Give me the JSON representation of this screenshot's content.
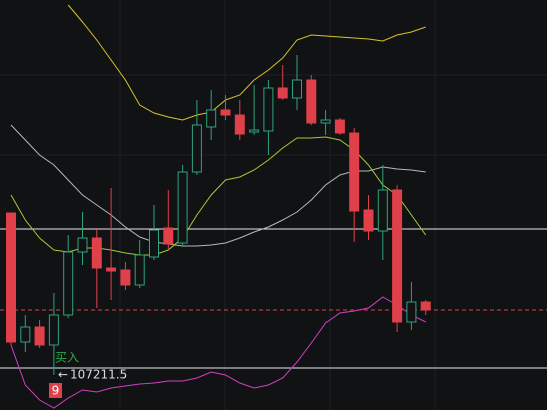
{
  "chart_data": {
    "type": "candlestick",
    "ylim": [
      106860,
      110960
    ],
    "up_color": "#2ea37c",
    "down_color": "#e0404a",
    "candles": {
      "open": [
        108830,
        107540,
        107690,
        107510,
        107810,
        108440,
        108580,
        108280,
        108260,
        108110,
        108390,
        108680,
        108530,
        109240,
        109690,
        109860,
        109810,
        109640,
        109650,
        110080,
        109980,
        110160,
        109730,
        109760,
        109630,
        108860,
        108650,
        109060,
        107740,
        107940
      ],
      "close": [
        107540,
        107690,
        107510,
        107810,
        108440,
        108580,
        108280,
        108250,
        108110,
        108410,
        108660,
        108520,
        109240,
        109710,
        109860,
        109810,
        109620,
        109660,
        110080,
        109980,
        110160,
        109730,
        109760,
        109630,
        108850,
        108650,
        109060,
        107740,
        107940,
        107860
      ],
      "high": [
        108830,
        107810,
        107760,
        108030,
        108610,
        108840,
        108660,
        109080,
        108340,
        108560,
        108910,
        109060,
        109310,
        109960,
        110060,
        110010,
        109960,
        110110,
        110160,
        110310,
        110410,
        110210,
        109860,
        109780,
        109680,
        109010,
        109310,
        109110,
        108140,
        107960
      ],
      "low": [
        107510,
        107440,
        107480,
        107211.5,
        107780,
        108310,
        107880,
        107960,
        108060,
        108080,
        108360,
        108460,
        108510,
        109210,
        109560,
        109760,
        109560,
        109610,
        109410,
        109960,
        109860,
        109710,
        109610,
        109610,
        108540,
        108560,
        108360,
        107640,
        107660,
        107810
      ]
    },
    "series": [
      {
        "color": "#d9c22a",
        "values": [
          null,
          null,
          null,
          null,
          110910,
          110740,
          110560,
          110360,
          110160,
          109910,
          109830,
          109790,
          109760,
          109810,
          109840,
          109960,
          110010,
          110160,
          110260,
          110380,
          110560,
          110610,
          110600,
          110590,
          110580,
          110570,
          110550,
          110610,
          110640,
          110690
        ]
      },
      {
        "color": "#b8b8b8",
        "values": [
          109710,
          109560,
          109410,
          109310,
          109160,
          109010,
          108910,
          108810,
          108690,
          108590,
          108540,
          108520,
          108500,
          108500,
          108510,
          108530,
          108580,
          108640,
          108690,
          108760,
          108840,
          108960,
          109110,
          109210,
          109250,
          109250,
          109290,
          109270,
          109260,
          109240
        ]
      },
      {
        "color": "#9bcf3a",
        "values": [
          109010,
          108760,
          108580,
          108460,
          108440,
          108480,
          108480,
          108460,
          108430,
          108410,
          108410,
          108460,
          108580,
          108810,
          109010,
          109160,
          109190,
          109260,
          109360,
          109480,
          109580,
          109580,
          109590,
          109560,
          109460,
          109310,
          109110,
          109010,
          108810,
          108610
        ]
      },
      {
        "color": "#d43fc4",
        "values": [
          107510,
          107110,
          106960,
          106880,
          106980,
          107060,
          107040,
          107080,
          107100,
          107120,
          107130,
          107150,
          107150,
          107180,
          107240,
          107210,
          107130,
          107080,
          107110,
          107180,
          107340,
          107530,
          107730,
          107830,
          107850,
          107880,
          107990,
          107910,
          107810,
          107740
        ]
      }
    ],
    "levels": [
      {
        "value": 108670,
        "color": "#e8e8e8",
        "dashed": false
      },
      {
        "value": 107280,
        "color": "#e8e8e8",
        "dashed": false
      },
      {
        "value": 107860,
        "color": "#e0404a",
        "dashed": true
      }
    ],
    "annotations": {
      "signal": "买入",
      "count": "9",
      "low_label": "107211.5"
    }
  }
}
